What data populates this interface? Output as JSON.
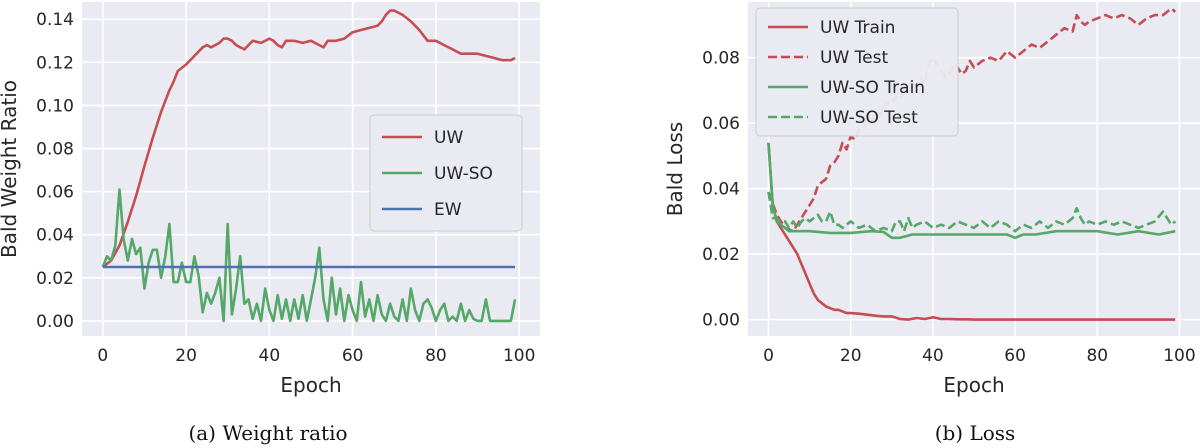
{
  "colors": {
    "uw": "#c44e52",
    "uwso": "#55a868",
    "ew": "#4c72b0",
    "plot_bg": "#eaeaf2",
    "grid": "#ffffff"
  },
  "chart_data": [
    {
      "type": "line",
      "caption": "(a) Weight ratio",
      "xlabel": "Epoch",
      "ylabel": "Bald Weight Ratio",
      "xlim": [
        -5,
        105
      ],
      "ylim": [
        -0.007,
        0.148
      ],
      "xticks": [
        0,
        20,
        40,
        60,
        80,
        100
      ],
      "yticks": [
        0.0,
        0.02,
        0.04,
        0.06,
        0.08,
        0.1,
        0.12,
        0.14
      ],
      "ytick_labels": [
        "0.00",
        "0.02",
        "0.04",
        "0.06",
        "0.08",
        "0.10",
        "0.12",
        "0.14"
      ],
      "grid": true,
      "legend_position": "center-right",
      "series": [
        {
          "name": "UW",
          "color": "#c44e52",
          "style": "solid",
          "x": [
            0,
            2,
            4,
            6,
            8,
            10,
            12,
            14,
            16,
            17,
            18,
            20,
            22,
            24,
            25,
            26,
            28,
            29,
            30,
            31,
            32,
            34,
            35,
            36,
            38,
            40,
            41,
            42,
            43,
            44,
            45,
            46,
            48,
            50,
            52,
            53,
            54,
            56,
            58,
            60,
            62,
            64,
            66,
            67,
            68,
            69,
            70,
            72,
            74,
            75,
            76,
            78,
            80,
            82,
            84,
            86,
            88,
            90,
            92,
            94,
            96,
            98,
            99
          ],
          "y": [
            0.025,
            0.028,
            0.035,
            0.046,
            0.058,
            0.072,
            0.085,
            0.097,
            0.107,
            0.111,
            0.116,
            0.119,
            0.123,
            0.127,
            0.128,
            0.127,
            0.129,
            0.131,
            0.131,
            0.13,
            0.128,
            0.126,
            0.128,
            0.13,
            0.129,
            0.131,
            0.13,
            0.128,
            0.127,
            0.13,
            0.13,
            0.13,
            0.129,
            0.13,
            0.128,
            0.127,
            0.13,
            0.13,
            0.131,
            0.134,
            0.135,
            0.136,
            0.137,
            0.139,
            0.142,
            0.144,
            0.144,
            0.142,
            0.139,
            0.137,
            0.135,
            0.13,
            0.13,
            0.128,
            0.126,
            0.124,
            0.124,
            0.124,
            0.123,
            0.122,
            0.121,
            0.121,
            0.122
          ]
        },
        {
          "name": "UW-SO",
          "color": "#55a868",
          "style": "solid",
          "x": [
            0,
            1,
            2,
            3,
            4,
            5,
            6,
            7,
            8,
            9,
            10,
            11,
            12,
            13,
            14,
            15,
            16,
            17,
            18,
            19,
            20,
            21,
            22,
            23,
            24,
            25,
            26,
            27,
            28,
            29,
            30,
            31,
            32,
            33,
            34,
            35,
            36,
            37,
            38,
            39,
            40,
            41,
            42,
            43,
            44,
            45,
            46,
            47,
            48,
            49,
            50,
            51,
            52,
            53,
            54,
            55,
            56,
            57,
            58,
            59,
            60,
            61,
            62,
            63,
            64,
            65,
            66,
            67,
            68,
            69,
            70,
            71,
            72,
            73,
            74,
            75,
            76,
            77,
            78,
            79,
            80,
            81,
            82,
            83,
            84,
            85,
            86,
            87,
            88,
            89,
            90,
            91,
            92,
            93,
            94,
            95,
            96,
            97,
            98,
            99
          ],
          "y": [
            0.025,
            0.03,
            0.028,
            0.035,
            0.061,
            0.038,
            0.028,
            0.038,
            0.031,
            0.034,
            0.015,
            0.027,
            0.033,
            0.033,
            0.02,
            0.03,
            0.045,
            0.018,
            0.018,
            0.027,
            0.018,
            0.018,
            0.03,
            0.021,
            0.004,
            0.013,
            0.008,
            0.013,
            0.02,
            0.0,
            0.045,
            0.003,
            0.015,
            0.03,
            0.008,
            0.01,
            0.001,
            0.008,
            0.0,
            0.015,
            0.005,
            0.0,
            0.012,
            0.001,
            0.01,
            0.0,
            0.01,
            0.001,
            0.012,
            0.0,
            0.01,
            0.02,
            0.034,
            0.01,
            0.0,
            0.02,
            0.003,
            0.015,
            0.0,
            0.012,
            0.005,
            0.0,
            0.018,
            0.002,
            0.01,
            0.0,
            0.012,
            0.003,
            0.0,
            0.008,
            0.002,
            0.0,
            0.01,
            0.0,
            0.015,
            0.005,
            0.0,
            0.008,
            0.01,
            0.006,
            0.0,
            0.005,
            0.008,
            0.0,
            0.002,
            0.0,
            0.008,
            0.0,
            0.005,
            0.001,
            0.0,
            0.0,
            0.01,
            0.0,
            0.0,
            0.0,
            0.0,
            0.0,
            0.0,
            0.01
          ]
        },
        {
          "name": "EW",
          "color": "#4c72b0",
          "style": "solid",
          "x": [
            0,
            99
          ],
          "y": [
            0.025,
            0.025
          ]
        }
      ]
    },
    {
      "type": "line",
      "caption": "(b) Loss",
      "xlabel": "Epoch",
      "ylabel": "Bald Loss",
      "xlim": [
        -5,
        105
      ],
      "ylim": [
        -0.005,
        0.097
      ],
      "xticks": [
        0,
        20,
        40,
        60,
        80,
        100
      ],
      "yticks": [
        0.0,
        0.02,
        0.04,
        0.06,
        0.08
      ],
      "ytick_labels": [
        "0.00",
        "0.02",
        "0.04",
        "0.06",
        "0.08"
      ],
      "grid": true,
      "legend_position": "top-left",
      "series": [
        {
          "name": "UW Train",
          "color": "#c44e52",
          "style": "solid",
          "x": [
            0,
            1,
            2,
            3,
            4,
            5,
            6,
            7,
            8,
            9,
            10,
            11,
            12,
            13,
            14,
            15,
            16,
            17,
            18,
            19,
            20,
            22,
            24,
            26,
            28,
            30,
            32,
            34,
            36,
            38,
            40,
            42,
            44,
            46,
            48,
            50,
            55,
            60,
            65,
            70,
            75,
            80,
            85,
            90,
            95,
            99
          ],
          "y": [
            0.054,
            0.035,
            0.03,
            0.028,
            0.026,
            0.024,
            0.022,
            0.02,
            0.017,
            0.014,
            0.011,
            0.008,
            0.006,
            0.005,
            0.004,
            0.0035,
            0.003,
            0.003,
            0.0025,
            0.002,
            0.002,
            0.0018,
            0.0015,
            0.0012,
            0.001,
            0.001,
            0.0002,
            0.0,
            0.0005,
            0.0002,
            0.0007,
            0.0002,
            0.0002,
            0.0001,
            0.0001,
            0.0,
            0.0,
            0.0,
            0.0,
            0.0,
            0.0,
            0.0,
            0.0,
            0.0,
            0.0,
            0.0
          ]
        },
        {
          "name": "UW Test",
          "color": "#c44e52",
          "style": "dashed",
          "x": [
            0,
            2,
            4,
            6,
            8,
            9,
            10,
            11,
            12,
            13,
            14,
            15,
            16,
            17,
            18,
            19,
            20,
            21,
            22,
            23,
            24,
            25,
            26,
            27,
            28,
            29,
            30,
            31,
            32,
            33,
            34,
            35,
            36,
            37,
            38,
            39,
            40,
            41,
            42,
            43,
            44,
            45,
            46,
            47,
            48,
            49,
            50,
            52,
            54,
            56,
            58,
            60,
            62,
            64,
            66,
            68,
            70,
            72,
            74,
            75,
            76,
            77,
            78,
            80,
            82,
            84,
            86,
            88,
            90,
            92,
            94,
            96,
            98,
            99
          ],
          "y": [
            0.039,
            0.032,
            0.028,
            0.027,
            0.031,
            0.033,
            0.035,
            0.037,
            0.041,
            0.042,
            0.043,
            0.047,
            0.048,
            0.05,
            0.054,
            0.052,
            0.056,
            0.055,
            0.058,
            0.058,
            0.061,
            0.06,
            0.063,
            0.062,
            0.065,
            0.066,
            0.066,
            0.068,
            0.067,
            0.07,
            0.069,
            0.072,
            0.071,
            0.074,
            0.072,
            0.078,
            0.08,
            0.078,
            0.076,
            0.074,
            0.075,
            0.078,
            0.077,
            0.075,
            0.076,
            0.079,
            0.077,
            0.079,
            0.08,
            0.079,
            0.082,
            0.08,
            0.082,
            0.084,
            0.083,
            0.085,
            0.087,
            0.089,
            0.088,
            0.093,
            0.091,
            0.09,
            0.091,
            0.092,
            0.093,
            0.092,
            0.093,
            0.092,
            0.09,
            0.092,
            0.093,
            0.093,
            0.095,
            0.094
          ]
        },
        {
          "name": "UW-SO Train",
          "color": "#55a868",
          "style": "solid",
          "x": [
            0,
            1,
            2,
            3,
            4,
            5,
            6,
            8,
            10,
            15,
            20,
            25,
            28,
            30,
            32,
            35,
            40,
            45,
            50,
            55,
            58,
            60,
            62,
            65,
            70,
            75,
            80,
            85,
            90,
            95,
            99
          ],
          "y": [
            0.054,
            0.035,
            0.03,
            0.029,
            0.028,
            0.027,
            0.027,
            0.027,
            0.027,
            0.0265,
            0.0265,
            0.027,
            0.0268,
            0.025,
            0.025,
            0.026,
            0.026,
            0.026,
            0.026,
            0.026,
            0.026,
            0.025,
            0.026,
            0.026,
            0.027,
            0.027,
            0.027,
            0.026,
            0.027,
            0.026,
            0.027
          ]
        },
        {
          "name": "UW-SO Test",
          "color": "#55a868",
          "style": "dashed",
          "x": [
            0,
            1,
            2,
            3,
            4,
            5,
            6,
            7,
            8,
            9,
            10,
            11,
            12,
            13,
            14,
            15,
            16,
            17,
            18,
            19,
            20,
            22,
            24,
            26,
            28,
            30,
            31,
            32,
            33,
            34,
            35,
            36,
            38,
            40,
            42,
            44,
            46,
            48,
            50,
            52,
            54,
            56,
            58,
            60,
            62,
            64,
            66,
            68,
            70,
            72,
            74,
            75,
            76,
            77,
            78,
            80,
            82,
            84,
            86,
            88,
            90,
            92,
            94,
            96,
            98,
            99
          ],
          "y": [
            0.039,
            0.031,
            0.031,
            0.03,
            0.03,
            0.028,
            0.03,
            0.028,
            0.03,
            0.031,
            0.03,
            0.031,
            0.032,
            0.03,
            0.03,
            0.033,
            0.029,
            0.029,
            0.028,
            0.029,
            0.03,
            0.028,
            0.029,
            0.027,
            0.028,
            0.027,
            0.03,
            0.03,
            0.027,
            0.031,
            0.028,
            0.029,
            0.03,
            0.028,
            0.029,
            0.028,
            0.03,
            0.029,
            0.028,
            0.03,
            0.028,
            0.03,
            0.029,
            0.027,
            0.029,
            0.028,
            0.03,
            0.028,
            0.03,
            0.029,
            0.031,
            0.034,
            0.031,
            0.029,
            0.03,
            0.029,
            0.03,
            0.029,
            0.03,
            0.029,
            0.028,
            0.029,
            0.03,
            0.033,
            0.029,
            0.03
          ]
        }
      ]
    }
  ]
}
